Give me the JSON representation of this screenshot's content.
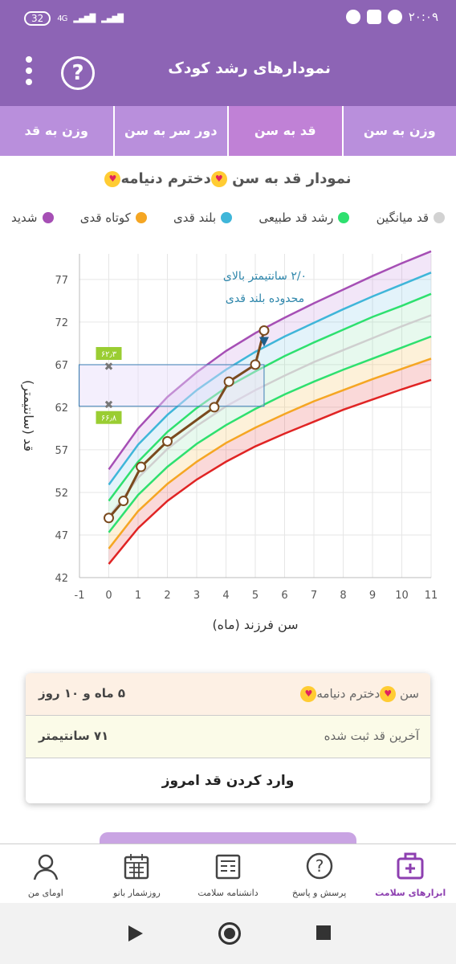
{
  "status_bar": {
    "battery": "32",
    "network": "4G",
    "time": "۲۰:۰۹"
  },
  "app_bar": {
    "title": "نمودارهای رشد کودک",
    "help_symbol": "?"
  },
  "tabs": [
    {
      "label": "وزن به سن",
      "active": false
    },
    {
      "label": "قد به سن",
      "active": true
    },
    {
      "label": "دور سر به سن",
      "active": false
    },
    {
      "label": "وزن به قد",
      "active": false
    }
  ],
  "chart_header": {
    "prefix": "نمودار قد به سن",
    "child_name": "دخترم دنیامه",
    "emoji": "heart-eyes-emoji"
  },
  "legend": [
    {
      "label": "شدید",
      "color": "#a64fb5"
    },
    {
      "label": "کوتاه قدی",
      "color": "#f5a623"
    },
    {
      "label": "بلند قدی",
      "color": "#3fb6d9"
    },
    {
      "label": "رشد قد طبیعی",
      "color": "#2ee06f"
    },
    {
      "label": "قد میانگین",
      "color": "#d2d2d2"
    }
  ],
  "chart_data": {
    "type": "line",
    "xlabel": "سن فرزند (ماه)",
    "ylabel": "قد (سانتیمتر)",
    "xlim": [
      -1,
      11
    ],
    "ylim": [
      42,
      80
    ],
    "x_ticks": [
      -1,
      0,
      1,
      2,
      3,
      4,
      5,
      6,
      7,
      8,
      9,
      10,
      11
    ],
    "y_ticks": [
      42,
      47,
      52,
      57,
      62,
      67,
      72,
      77
    ],
    "grid": true,
    "reference_x": [
      0,
      1,
      2,
      3,
      4,
      5,
      6,
      7,
      8,
      9,
      10,
      11
    ],
    "reference_curves": [
      {
        "color": "#e02424",
        "values": [
          43.6,
          47.8,
          51.0,
          53.5,
          55.6,
          57.4,
          58.9,
          60.3,
          61.7,
          62.9,
          64.1,
          65.2
        ]
      },
      {
        "color": "#f5a623",
        "values": [
          45.4,
          49.8,
          53.0,
          55.6,
          57.8,
          59.6,
          61.2,
          62.7,
          64.0,
          65.3,
          66.5,
          67.7
        ]
      },
      {
        "color": "#2ee06f",
        "values": [
          47.3,
          51.7,
          55.0,
          57.7,
          59.9,
          61.8,
          63.5,
          65.0,
          66.4,
          67.7,
          69.0,
          70.3
        ]
      },
      {
        "color": "#cfcfcf",
        "values": [
          49.1,
          53.7,
          57.1,
          59.8,
          62.1,
          64.0,
          65.7,
          67.3,
          68.7,
          70.1,
          71.5,
          72.8
        ]
      },
      {
        "color": "#2ee06f",
        "values": [
          51.0,
          55.6,
          59.1,
          61.9,
          64.3,
          66.2,
          68.0,
          69.6,
          71.1,
          72.6,
          73.9,
          75.3
        ]
      },
      {
        "color": "#3fb6d9",
        "values": [
          52.9,
          57.6,
          61.1,
          64.0,
          66.4,
          68.5,
          70.3,
          71.9,
          73.5,
          75.0,
          76.4,
          77.8
        ]
      },
      {
        "color": "#a64fb5",
        "values": [
          54.7,
          59.5,
          63.2,
          66.1,
          68.6,
          70.7,
          72.5,
          74.2,
          75.8,
          77.4,
          78.9,
          80.3
        ]
      }
    ],
    "measurements": {
      "x": [
        0,
        0.5,
        1.1,
        2.0,
        3.6,
        4.1,
        5.0,
        5.3
      ],
      "y": [
        49,
        51,
        55,
        58,
        62,
        65,
        67,
        71
      ],
      "color": "#7a4a1e"
    },
    "range_box": {
      "x": [
        0,
        5.3
      ],
      "y": [
        62.3,
        66.8
      ],
      "labels": [
        "۶۶٫۸",
        "۶۲٫۳"
      ]
    },
    "annotation": {
      "lines": [
        "۲/۰ سانتیمتر بالای",
        "محدوده بلند قدی"
      ],
      "color": "#2e86ab"
    }
  },
  "info_card": {
    "age_label": "سن",
    "child_name": "دخترم دنیامه",
    "age_value": "۵ ماه و ۱۰ روز",
    "height_label": "آخرین قد ثبت شده",
    "height_value": "۷۱ سانتیمتر",
    "button_label": "وارد کردن قد امروز"
  },
  "bottom_nav": [
    {
      "label": "ابزارهای سلامت",
      "icon": "medical-kit-icon",
      "active": true
    },
    {
      "label": "پرسش و پاسخ",
      "icon": "question-bubble-icon",
      "active": false
    },
    {
      "label": "دانشنامه سلامت",
      "icon": "newspaper-icon",
      "active": false
    },
    {
      "label": "روزشمار بانو",
      "icon": "calendar-icon",
      "active": false
    },
    {
      "label": "اومای من",
      "icon": "profile-icon",
      "active": false
    }
  ]
}
